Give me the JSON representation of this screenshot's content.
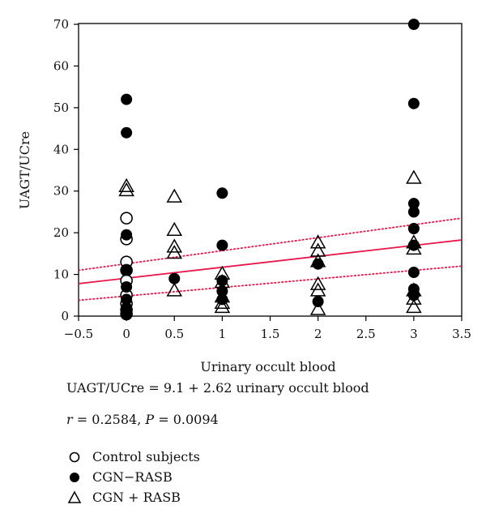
{
  "chart_data": {
    "type": "scatter",
    "xlabel": "Urinary occult blood",
    "ylabel": "UAGT/UCre",
    "xlim": [
      -0.5,
      3.5
    ],
    "ylim": [
      0,
      70
    ],
    "xticks": [
      "-0.5",
      "0",
      "0.5",
      "1",
      "1.5",
      "2",
      "2.5",
      "3",
      "3.5"
    ],
    "xtick_values": [
      -0.5,
      0,
      0.5,
      1,
      1.5,
      2,
      2.5,
      3,
      3.5
    ],
    "yticks": [
      "0",
      "10",
      "20",
      "30",
      "40",
      "50",
      "60",
      "70"
    ],
    "ytick_values": [
      0,
      10,
      20,
      30,
      40,
      50,
      60,
      70
    ],
    "grid": false,
    "legend_position": "bottom",
    "series": [
      {
        "name": "Control subjects",
        "marker": "open-circle",
        "points": [
          [
            0,
            23.5
          ],
          [
            0,
            18.5
          ],
          [
            0,
            13
          ],
          [
            0,
            11
          ],
          [
            0,
            8.5
          ],
          [
            0,
            5
          ],
          [
            0,
            3
          ],
          [
            0,
            1.5
          ],
          [
            0,
            0.5
          ]
        ]
      },
      {
        "name": "CGN−RASB",
        "marker": "filled-circle",
        "points": [
          [
            0,
            52
          ],
          [
            0,
            44
          ],
          [
            0,
            19.5
          ],
          [
            0,
            11
          ],
          [
            0,
            7
          ],
          [
            0,
            4
          ],
          [
            0,
            2
          ],
          [
            0,
            0.5
          ],
          [
            0.5,
            9
          ],
          [
            1,
            29.5
          ],
          [
            1,
            17
          ],
          [
            1,
            8.5
          ],
          [
            1,
            6
          ],
          [
            1,
            4
          ],
          [
            2,
            12.5
          ],
          [
            2,
            3.5
          ],
          [
            3,
            70
          ],
          [
            3,
            51
          ],
          [
            3,
            27
          ],
          [
            3,
            25
          ],
          [
            3,
            21
          ],
          [
            3,
            17
          ],
          [
            3,
            10.5
          ],
          [
            3,
            6.5
          ],
          [
            3,
            5
          ]
        ]
      },
      {
        "name": "CGN + RASB",
        "marker": "open-triangle",
        "points": [
          [
            0,
            31
          ],
          [
            0,
            30
          ],
          [
            0.5,
            28.5
          ],
          [
            0.5,
            20.5
          ],
          [
            0.5,
            16.5
          ],
          [
            0.5,
            15
          ],
          [
            0.5,
            6
          ],
          [
            1,
            10
          ],
          [
            1,
            8
          ],
          [
            1,
            4.5
          ],
          [
            1,
            3
          ],
          [
            1,
            2
          ],
          [
            2,
            17.5
          ],
          [
            2,
            15.5
          ],
          [
            2,
            13
          ],
          [
            2,
            7.5
          ],
          [
            2,
            6
          ],
          [
            2,
            1.5
          ],
          [
            3,
            33
          ],
          [
            3,
            17.5
          ],
          [
            3,
            16
          ],
          [
            3,
            6
          ],
          [
            3,
            4
          ],
          [
            3,
            2
          ]
        ]
      }
    ],
    "regression": {
      "intercept": 9.1,
      "slope": 2.62,
      "color": "#e8174b"
    },
    "confidence_band": {
      "lower": [
        [
          -0.5,
          3.8
        ],
        [
          3.5,
          12
        ]
      ],
      "upper": [
        [
          -0.5,
          11
        ],
        [
          3.5,
          23.5
        ]
      ],
      "color": "#e8174b",
      "style": "dotted"
    }
  },
  "caption": {
    "equation": "UAGT/UCre = 9.1 + 2.62 urinary occult blood",
    "r_symbol": "r",
    "r_value": " = 0.2584, ",
    "p_symbol": "P",
    "p_value": " = 0.0094"
  },
  "legend": {
    "items": [
      {
        "label": "Control subjects",
        "marker": "open-circle"
      },
      {
        "label": "CGN−RASB",
        "marker": "filled-circle"
      },
      {
        "label": "CGN + RASB",
        "marker": "open-triangle"
      }
    ]
  }
}
